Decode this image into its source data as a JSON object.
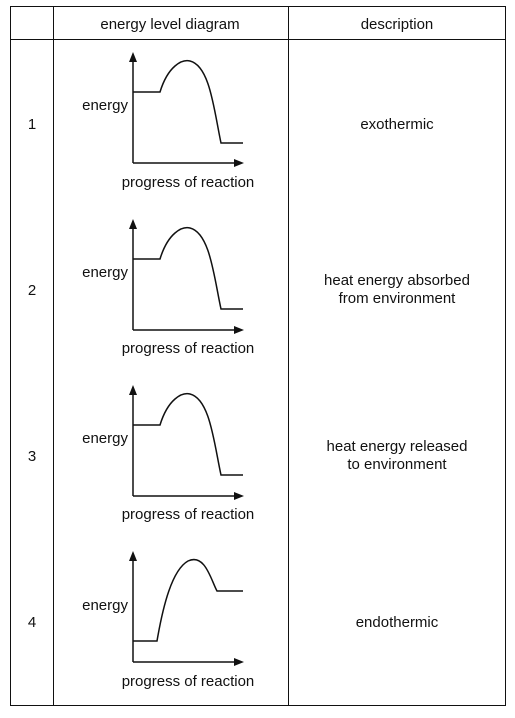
{
  "headers": {
    "number": "",
    "diagram": "energy level diagram",
    "description": "description"
  },
  "rows": [
    {
      "number": "1",
      "energy_label": "energy",
      "x_label": "progress of reaction",
      "description": [
        "exothermic"
      ],
      "profile": "exothermic"
    },
    {
      "number": "2",
      "energy_label": "energy",
      "x_label": "progress of reaction",
      "description": [
        "heat energy absorbed",
        "from environment"
      ],
      "profile": "exothermic"
    },
    {
      "number": "3",
      "energy_label": "energy",
      "x_label": "progress of reaction",
      "description": [
        "heat energy released",
        "to environment"
      ],
      "profile": "exothermic"
    },
    {
      "number": "4",
      "energy_label": "energy",
      "x_label": "progress of reaction",
      "description": [
        "endothermic"
      ],
      "profile": "endothermic"
    }
  ]
}
